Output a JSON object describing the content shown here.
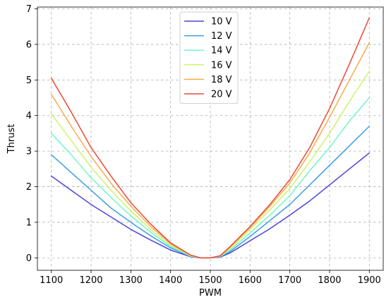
{
  "chart_data": {
    "type": "line",
    "title": "",
    "xlabel": "PWM",
    "ylabel": "Thrust",
    "xlim": [
      1065,
      1935
    ],
    "ylim": [
      -0.35,
      7.05
    ],
    "xticks": [
      1100,
      1200,
      1300,
      1400,
      1500,
      1600,
      1700,
      1800,
      1900
    ],
    "yticks": [
      0,
      1,
      2,
      3,
      4,
      5,
      6,
      7
    ],
    "grid": true,
    "legend_position": "top-center",
    "x": [
      1100,
      1150,
      1200,
      1250,
      1300,
      1350,
      1400,
      1450,
      1475,
      1500,
      1525,
      1550,
      1600,
      1650,
      1700,
      1750,
      1800,
      1850,
      1900
    ],
    "series": [
      {
        "name": "10 V",
        "color": "#4a44df",
        "values": [
          2.3,
          1.9,
          1.5,
          1.15,
          0.8,
          0.5,
          0.22,
          0.03,
          0,
          0,
          0.02,
          0.14,
          0.48,
          0.82,
          1.2,
          1.6,
          2.05,
          2.5,
          2.95
        ]
      },
      {
        "name": "12 V",
        "color": "#3c9ee8",
        "values": [
          2.9,
          2.4,
          1.9,
          1.4,
          1.0,
          0.62,
          0.28,
          0.04,
          0,
          0,
          0.03,
          0.18,
          0.6,
          1.05,
          1.5,
          2.05,
          2.6,
          3.15,
          3.7
        ]
      },
      {
        "name": "14 V",
        "color": "#72f7c6",
        "values": [
          3.5,
          2.9,
          2.25,
          1.7,
          1.18,
          0.72,
          0.32,
          0.05,
          0,
          0,
          0.04,
          0.22,
          0.7,
          1.2,
          1.75,
          2.45,
          3.1,
          3.85,
          4.5
        ]
      },
      {
        "name": "16 V",
        "color": "#cdf36b",
        "values": [
          4.05,
          3.3,
          2.55,
          1.9,
          1.32,
          0.8,
          0.36,
          0.06,
          0,
          0,
          0.05,
          0.26,
          0.8,
          1.35,
          1.95,
          2.7,
          3.5,
          4.4,
          5.25
        ]
      },
      {
        "name": "18 V",
        "color": "#f9ac49",
        "values": [
          4.6,
          3.7,
          2.85,
          2.1,
          1.45,
          0.88,
          0.4,
          0.07,
          0,
          0,
          0.05,
          0.3,
          0.85,
          1.45,
          2.1,
          2.95,
          3.95,
          5.0,
          6.05
        ]
      },
      {
        "name": "20 V",
        "color": "#e84a39",
        "values": [
          5.05,
          4.1,
          3.1,
          2.3,
          1.55,
          0.95,
          0.42,
          0.08,
          0,
          0,
          0.06,
          0.32,
          0.88,
          1.5,
          2.2,
          3.1,
          4.2,
          5.45,
          6.75
        ]
      }
    ]
  }
}
